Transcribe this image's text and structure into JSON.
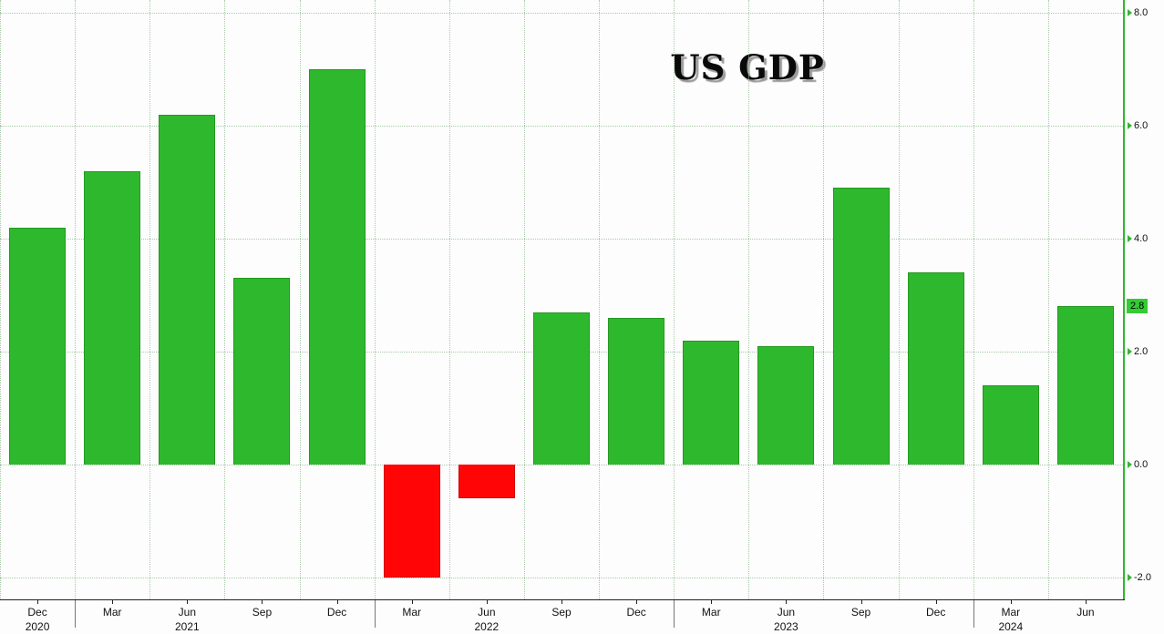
{
  "chart_data": {
    "type": "bar",
    "title": "US GDP",
    "categories": [
      "Dec 2020",
      "Mar 2021",
      "Jun 2021",
      "Sep 2021",
      "Dec 2021",
      "Mar 2022",
      "Jun 2022",
      "Sep 2022",
      "Dec 2022",
      "Mar 2023",
      "Jun 2023",
      "Sep 2023",
      "Dec 2023",
      "Mar 2024",
      "Jun 2024"
    ],
    "month_labels": [
      "Dec",
      "Mar",
      "Jun",
      "Sep",
      "Dec",
      "Mar",
      "Jun",
      "Sep",
      "Dec",
      "Mar",
      "Jun",
      "Sep",
      "Dec",
      "Mar",
      "Jun"
    ],
    "year_labels": [
      {
        "text": "2020",
        "slot": 0
      },
      {
        "text": "2021",
        "slot": 2
      },
      {
        "text": "2022",
        "slot": 6
      },
      {
        "text": "2023",
        "slot": 10
      },
      {
        "text": "2024",
        "slot": 13
      }
    ],
    "year_boundaries": [
      1,
      5,
      9,
      13
    ],
    "values": [
      4.2,
      5.2,
      6.2,
      3.3,
      7.0,
      -2.0,
      -0.6,
      2.7,
      2.6,
      2.2,
      2.1,
      4.9,
      3.4,
      1.4,
      2.8
    ],
    "y_ticks": [
      8.0,
      6.0,
      4.0,
      2.0,
      0.0,
      -2.0
    ],
    "y_tick_labels": [
      "8.0",
      "6.0",
      "4.0",
      "2.0",
      "0.0",
      "-2.0"
    ],
    "ylim": [
      -2.4,
      8.25
    ],
    "last_value_label": "2.8",
    "xlabel": "",
    "ylabel": "",
    "grid": "dotted",
    "legend_position": "none",
    "positive_color": "#2eb82e",
    "negative_color": "#ff0505",
    "axis_color": "#2eb82e",
    "last_value_bg": "#33cc33"
  }
}
